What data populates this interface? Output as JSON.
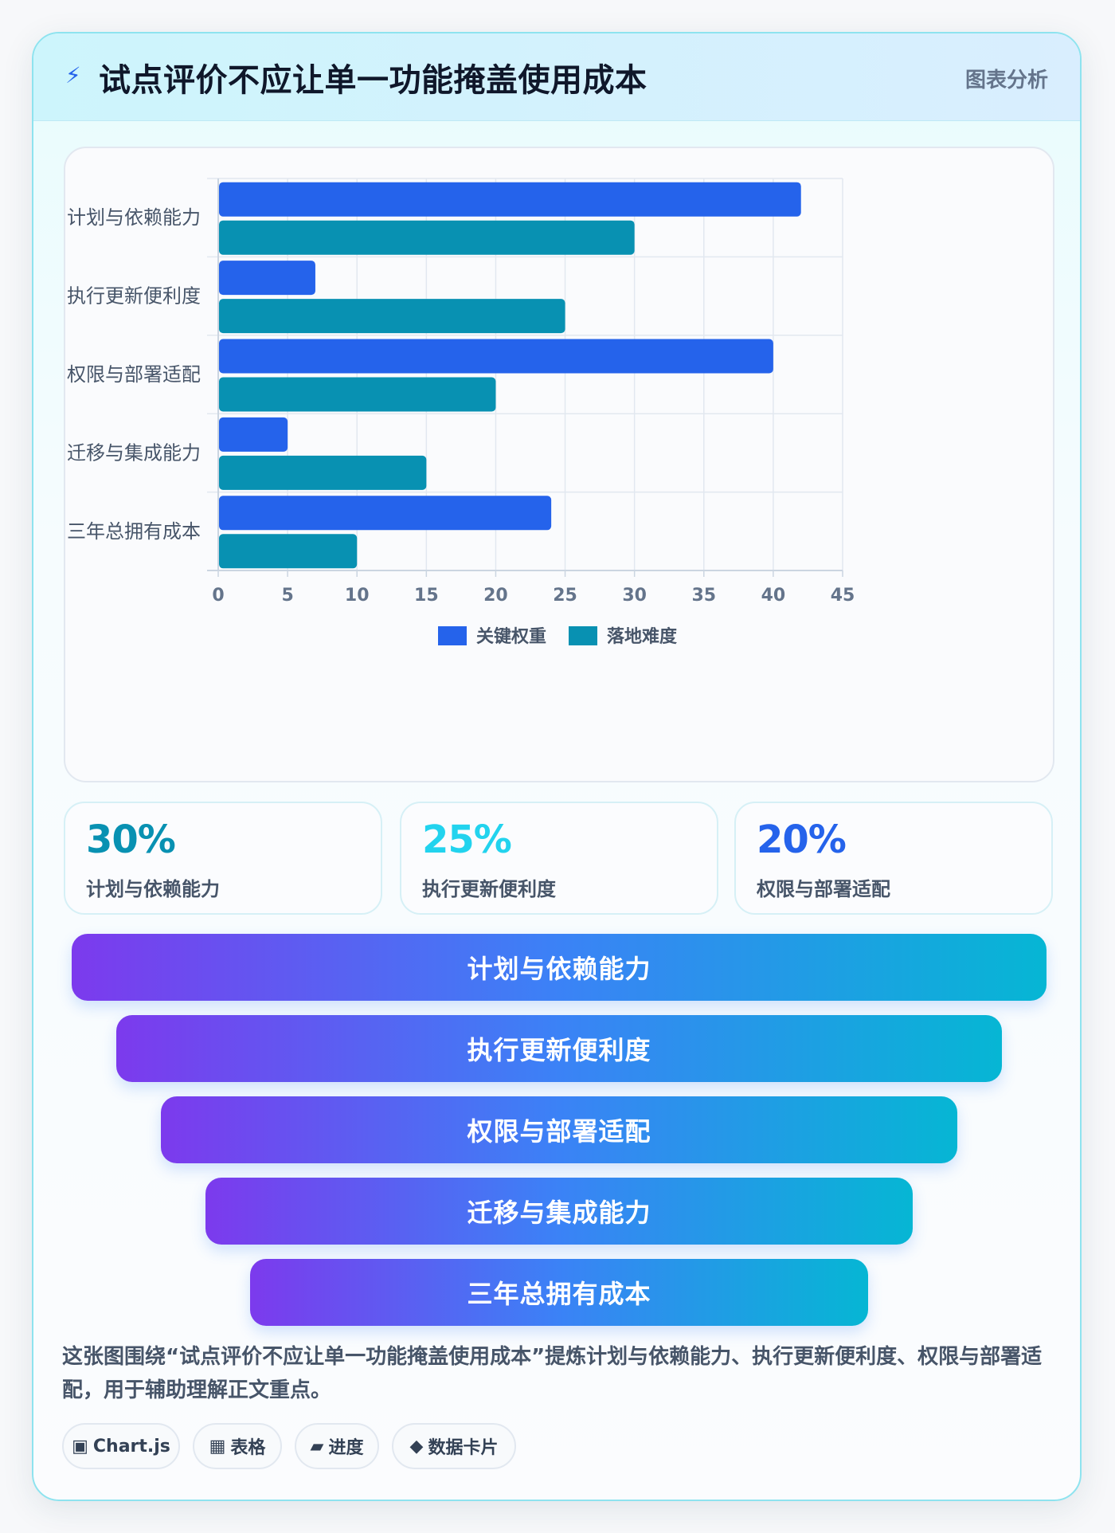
{
  "header": {
    "icon": "lightning-icon",
    "title": "试点评价不应让单一功能掩盖使用成本",
    "tag": "图表分析"
  },
  "chart_data": {
    "type": "bar",
    "orientation": "horizontal",
    "categories": [
      "计划与依赖能力",
      "执行更新便利度",
      "权限与部署适配",
      "迁移与集成能力",
      "三年总拥有成本"
    ],
    "series": [
      {
        "name": "关键权重",
        "color": "#2563eb",
        "values": [
          42,
          7,
          40,
          5,
          24
        ]
      },
      {
        "name": "落地难度",
        "color": "#0891b2",
        "values": [
          30,
          25,
          20,
          15,
          10
        ]
      }
    ],
    "xlim": [
      0,
      45
    ],
    "xticks": [
      0,
      5,
      10,
      15,
      20,
      25,
      30,
      35,
      40,
      45
    ],
    "grid": true,
    "legend": "bottom"
  },
  "stats": [
    {
      "value": "30%",
      "label": "计划与依赖能力",
      "color": "#0891b2"
    },
    {
      "value": "25%",
      "label": "执行更新便利度",
      "color": "#22d3ee"
    },
    {
      "value": "20%",
      "label": "权限与部署适配",
      "color": "#2563eb"
    }
  ],
  "funnel": [
    "计划与依赖能力",
    "执行更新便利度",
    "权限与部署适配",
    "迁移与集成能力",
    "三年总拥有成本"
  ],
  "summary": "这张图围绕“试点评价不应让单一功能掩盖使用成本”提炼计划与依赖能力、执行更新便利度、权限与部署适配，用于辅助理解正文重点。",
  "chips": [
    {
      "icon": "▣",
      "label": "Chart.js"
    },
    {
      "icon": "▦",
      "label": "表格"
    },
    {
      "icon": "▰",
      "label": "进度"
    },
    {
      "icon": "◆",
      "label": "数据卡片"
    }
  ]
}
